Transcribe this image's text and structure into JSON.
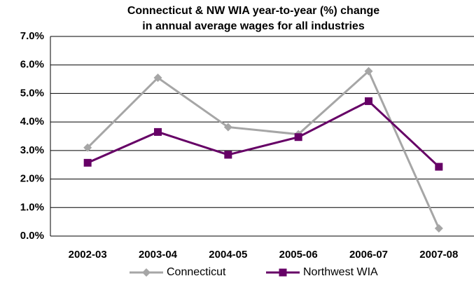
{
  "chart_data": {
    "type": "line",
    "title": [
      "Connecticut & NW WIA year-to-year (%) change",
      "in annual average wages for all industries"
    ],
    "categories": [
      "2002-03",
      "2003-04",
      "2004-05",
      "2005-06",
      "2006-07",
      "2007-08"
    ],
    "series": [
      {
        "name": "Connecticut",
        "color": "#a6a6a6",
        "marker": "diamond",
        "values": [
          3.1,
          5.55,
          3.82,
          3.57,
          5.78,
          0.27
        ]
      },
      {
        "name": "Northwest WIA",
        "color": "#660066",
        "marker": "square",
        "values": [
          2.57,
          3.65,
          2.85,
          3.47,
          4.73,
          2.43
        ]
      }
    ],
    "ylim": [
      0,
      7
    ],
    "yticks": [
      {
        "value": 0,
        "label": "0.0%"
      },
      {
        "value": 1,
        "label": "1.0%"
      },
      {
        "value": 2,
        "label": "2.0%"
      },
      {
        "value": 3,
        "label": "3.0%"
      },
      {
        "value": 4,
        "label": "4.0%"
      },
      {
        "value": 5,
        "label": "5.0%"
      },
      {
        "value": 6,
        "label": "6.0%"
      },
      {
        "value": 7,
        "label": "7.0%"
      }
    ],
    "grid": true,
    "legend": "bottom"
  }
}
